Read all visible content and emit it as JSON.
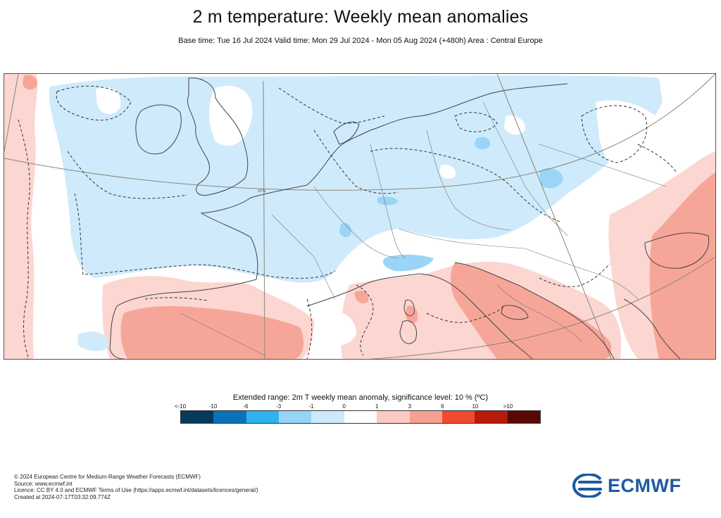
{
  "header": {
    "title": "2 m temperature: Weekly mean anomalies",
    "subtitle": "Base time: Tue 16 Jul 2024 Valid time: Mon 29 Jul 2024 - Mon 05 Aug 2024 (+480h) Area : Central Europe"
  },
  "map": {
    "latitude_label": "50°N",
    "colors": {
      "weak_cold": "#cfeafb",
      "cold": "#9bd4f7",
      "neutral": "#ffffff",
      "weak_warm": "#fcd6d1",
      "warm": "#f6a698",
      "coast": "#444444",
      "graticule": "#888877"
    }
  },
  "legend": {
    "title": "Extended range: 2m T weekly mean anomaly, significance level: 10 % (ºC)",
    "tick_labels": [
      "<-10",
      "-10",
      "-6",
      "-3",
      "-1",
      "0",
      "1",
      "3",
      "6",
      "10",
      ">10"
    ],
    "bins": [
      {
        "color": "#053a5c"
      },
      {
        "color": "#0a72b8"
      },
      {
        "color": "#2eb2f0"
      },
      {
        "color": "#95d4f6"
      },
      {
        "color": "#cde9fa"
      },
      {
        "color": "#ffffff"
      },
      {
        "color": "#fbcac3"
      },
      {
        "color": "#f6a092"
      },
      {
        "color": "#f04a30"
      },
      {
        "color": "#b8190c"
      },
      {
        "color": "#5a0804"
      }
    ]
  },
  "footer": {
    "copyright": "© 2024 European Centre for Medium-Range Weather Forecasts (ECMWF)",
    "source": "Source: www.ecmwf.int",
    "licence": "Licence: CC BY 4.0 and ECMWF Terms of Use (https://apps.ecmwf.int/datasets/licences/general/)",
    "created": "Created at 2024-07-17T03:32:09.774Z"
  },
  "logo": {
    "text": "ECMWF"
  }
}
